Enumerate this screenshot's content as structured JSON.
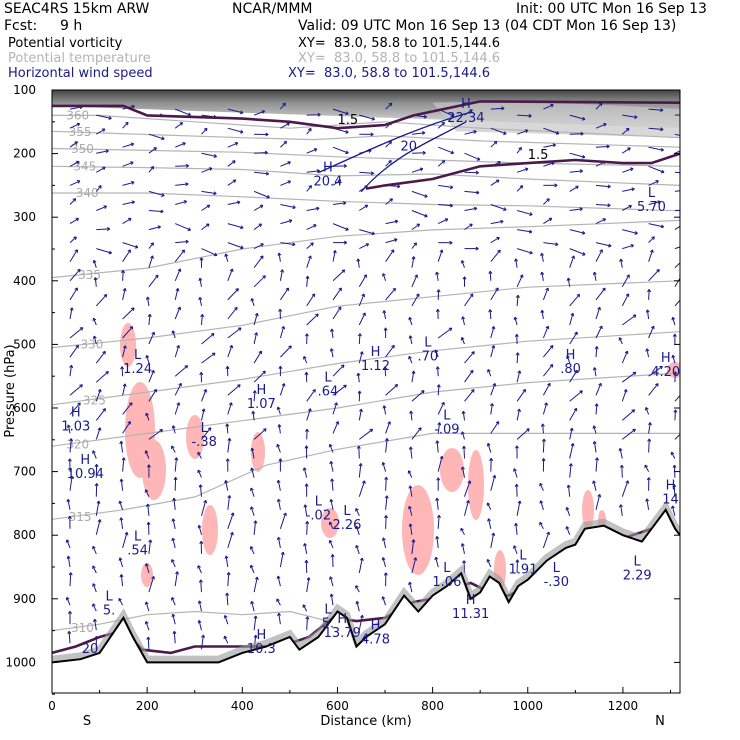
{
  "header": {
    "model": "SEAC4RS 15km ARW",
    "org": "NCAR/MMM",
    "init": "Init: 00 UTC Mon 16 Sep 13",
    "fcst_label": "Fcst:",
    "fcst_value": "9 h",
    "valid": "Valid: 09 UTC Mon 16 Sep 13 (04 CDT Mon 16 Sep 13)"
  },
  "legend": [
    {
      "name": "Potential vorticity",
      "xy": "XY=  83.0, 58.8 to 101.5,144.6",
      "color": "#000000"
    },
    {
      "name": "Potential temperature",
      "xy": "XY=  83.0, 58.8 to 101.5,144.6",
      "color": "#b4b4b4"
    },
    {
      "name": "Horizontal wind speed",
      "xy": "XY=  83.0, 58.8 to 101.5,144.6",
      "color": "#1a1a8c"
    }
  ],
  "chart_data": {
    "type": "cross-section",
    "xlabel": "Distance (km)",
    "ylabel": "Pressure (hPa)",
    "x_ticks": [
      "0",
      "200",
      "400",
      "600",
      "800",
      "1000",
      "1200"
    ],
    "y_ticks": [
      "100",
      "200",
      "300",
      "400",
      "500",
      "600",
      "700",
      "800",
      "900",
      "1000"
    ],
    "xlim": [
      0,
      1320
    ],
    "ylim": [
      1050,
      100
    ],
    "end_labels": {
      "left": "S",
      "right": "N"
    },
    "terrain": [
      [
        0,
        1000
      ],
      [
        60,
        995
      ],
      [
        100,
        985
      ],
      [
        150,
        930
      ],
      [
        170,
        960
      ],
      [
        200,
        1000
      ],
      [
        250,
        1000
      ],
      [
        300,
        1000
      ],
      [
        350,
        1000
      ],
      [
        400,
        985
      ],
      [
        450,
        975
      ],
      [
        500,
        960
      ],
      [
        520,
        980
      ],
      [
        560,
        960
      ],
      [
        600,
        920
      ],
      [
        620,
        930
      ],
      [
        640,
        975
      ],
      [
        660,
        960
      ],
      [
        700,
        940
      ],
      [
        740,
        895
      ],
      [
        770,
        920
      ],
      [
        800,
        895
      ],
      [
        830,
        880
      ],
      [
        860,
        860
      ],
      [
        880,
        900
      ],
      [
        900,
        890
      ],
      [
        920,
        865
      ],
      [
        940,
        875
      ],
      [
        960,
        905
      ],
      [
        980,
        880
      ],
      [
        1000,
        870
      ],
      [
        1040,
        840
      ],
      [
        1080,
        820
      ],
      [
        1100,
        815
      ],
      [
        1120,
        790
      ],
      [
        1160,
        785
      ],
      [
        1200,
        800
      ],
      [
        1240,
        810
      ],
      [
        1260,
        790
      ],
      [
        1290,
        760
      ],
      [
        1310,
        790
      ],
      [
        1320,
        800
      ]
    ],
    "theta_isentropes": [
      {
        "label": "360",
        "points": [
          [
            0,
            140
          ],
          [
            100,
            140
          ],
          [
            300,
            150
          ],
          [
            500,
            160
          ],
          [
            700,
            150
          ],
          [
            900,
            160
          ],
          [
            1320,
            175
          ]
        ]
      },
      {
        "label": "355",
        "points": [
          [
            0,
            165
          ],
          [
            200,
            170
          ],
          [
            400,
            175
          ],
          [
            550,
            178
          ],
          [
            700,
            172
          ],
          [
            900,
            180
          ],
          [
            1320,
            190
          ]
        ]
      },
      {
        "label": "350",
        "points": [
          [
            0,
            192
          ],
          [
            200,
            195
          ],
          [
            400,
            198
          ],
          [
            600,
            205
          ],
          [
            800,
            210
          ],
          [
            1000,
            215
          ],
          [
            1320,
            220
          ]
        ]
      },
      {
        "label": "345",
        "points": [
          [
            0,
            220
          ],
          [
            200,
            222
          ],
          [
            400,
            225
          ],
          [
            600,
            235
          ],
          [
            800,
            232
          ],
          [
            1000,
            240
          ],
          [
            1320,
            250
          ]
        ]
      },
      {
        "label": "340",
        "points": [
          [
            0,
            262
          ],
          [
            200,
            262
          ],
          [
            400,
            268
          ],
          [
            600,
            275
          ],
          [
            800,
            280
          ],
          [
            1000,
            282
          ],
          [
            1320,
            290
          ]
        ]
      },
      {
        "label": "335",
        "points": [
          [
            0,
            395
          ],
          [
            200,
            380
          ],
          [
            400,
            350
          ],
          [
            600,
            330
          ],
          [
            800,
            320
          ],
          [
            1000,
            315
          ],
          [
            1320,
            305
          ]
        ]
      },
      {
        "label": "330",
        "points": [
          [
            0,
            505
          ],
          [
            200,
            490
          ],
          [
            400,
            470
          ],
          [
            600,
            440
          ],
          [
            800,
            425
          ],
          [
            1000,
            410
          ],
          [
            1320,
            400
          ]
        ]
      },
      {
        "label": "325",
        "points": [
          [
            0,
            595
          ],
          [
            200,
            575
          ],
          [
            400,
            555
          ],
          [
            600,
            530
          ],
          [
            800,
            510
          ],
          [
            1000,
            495
          ],
          [
            1320,
            480
          ]
        ]
      },
      {
        "label": "320",
        "points": [
          [
            0,
            660
          ],
          [
            200,
            640
          ],
          [
            400,
            620
          ],
          [
            600,
            600
          ],
          [
            800,
            575
          ],
          [
            1000,
            560
          ],
          [
            1320,
            545
          ]
        ]
      },
      {
        "label": "315",
        "points": [
          [
            0,
            775
          ],
          [
            150,
            760
          ],
          [
            300,
            740
          ],
          [
            450,
            690
          ],
          [
            600,
            665
          ],
          [
            800,
            640
          ],
          [
            1000,
            640
          ],
          [
            1320,
            640
          ]
        ]
      },
      {
        "label": "310",
        "points": [
          [
            0,
            950
          ],
          [
            100,
            940
          ],
          [
            200,
            925
          ],
          [
            300,
            920
          ],
          [
            400,
            925
          ],
          [
            500,
            920
          ],
          [
            580,
            935
          ]
        ]
      }
    ],
    "pv_1_5_contours": [
      {
        "label": "1.5",
        "points": [
          [
            0,
            125
          ],
          [
            150,
            125
          ],
          [
            200,
            140
          ],
          [
            400,
            145
          ],
          [
            500,
            150
          ],
          [
            600,
            160
          ],
          [
            700,
            155
          ],
          [
            760,
            140
          ],
          [
            900,
            118
          ],
          [
            1320,
            120
          ]
        ]
      },
      {
        "label": "1.5",
        "points": [
          [
            660,
            255
          ],
          [
            700,
            250
          ],
          [
            800,
            240
          ],
          [
            900,
            220
          ],
          [
            1000,
            215
          ],
          [
            1100,
            210
          ],
          [
            1200,
            215
          ],
          [
            1260,
            215
          ],
          [
            1320,
            200
          ]
        ]
      },
      {
        "label": "",
        "points": [
          [
            0,
            985
          ],
          [
            50,
            975
          ],
          [
            100,
            960
          ],
          [
            150,
            950
          ],
          [
            190,
            980
          ],
          [
            250,
            985
          ],
          [
            300,
            975
          ],
          [
            400,
            975
          ],
          [
            450,
            975
          ],
          [
            500,
            970
          ],
          [
            540,
            960
          ],
          [
            590,
            930
          ],
          [
            640,
            935
          ],
          [
            700,
            930
          ],
          [
            760,
            905
          ],
          [
            800,
            900
          ],
          [
            840,
            885
          ],
          [
            880,
            875
          ],
          [
            920,
            890
          ],
          [
            960,
            895
          ],
          [
            1000,
            880
          ],
          [
            1040,
            850
          ],
          [
            1100,
            820
          ],
          [
            1200,
            805
          ],
          [
            1260,
            790
          ],
          [
            1320,
            800
          ]
        ]
      }
    ],
    "wind_max_labels": [
      {
        "kind": "H",
        "value": "22.34",
        "x": 870,
        "p": 150
      },
      {
        "kind": "H",
        "value": "20.4",
        "x": 580,
        "p": 250
      },
      {
        "kind": "L",
        "value": "5.70",
        "x": 1260,
        "p": 290
      },
      {
        "kind": "L",
        "value": "1.24",
        "x": 180,
        "p": 545
      },
      {
        "kind": "H",
        "value": "1.12",
        "x": 680,
        "p": 540
      },
      {
        "kind": "L",
        "value": ".70",
        "x": 790,
        "p": 525
      },
      {
        "kind": "L",
        "value": ".64",
        "x": 580,
        "p": 580
      },
      {
        "kind": "H",
        "value": "1.07",
        "x": 440,
        "p": 600
      },
      {
        "kind": "H",
        "value": ".80",
        "x": 1090,
        "p": 545
      },
      {
        "kind": "H",
        "value": "4.20",
        "x": 1290,
        "p": 550
      },
      {
        "kind": "H",
        "value": "1.03",
        "x": 50,
        "p": 635
      },
      {
        "kind": "L",
        "value": "-.38",
        "x": 320,
        "p": 660
      },
      {
        "kind": "L",
        "value": "-.09",
        "x": 830,
        "p": 640
      },
      {
        "kind": "H",
        "value": "10.94",
        "x": 70,
        "p": 710
      },
      {
        "kind": "H",
        "value": "14",
        "x": 1300,
        "p": 750
      },
      {
        "kind": "L",
        "value": "-.02",
        "x": 560,
        "p": 775
      },
      {
        "kind": "L",
        "value": "2.26",
        "x": 620,
        "p": 790
      },
      {
        "kind": "L",
        "value": ".54",
        "x": 180,
        "p": 830
      },
      {
        "kind": "L",
        "value": "1.06",
        "x": 830,
        "p": 880
      },
      {
        "kind": "L",
        "value": "1.91",
        "x": 990,
        "p": 860
      },
      {
        "kind": "L",
        "value": "-.30",
        "x": 1060,
        "p": 880
      },
      {
        "kind": "L",
        "value": "2.29",
        "x": 1230,
        "p": 870
      },
      {
        "kind": "H",
        "value": "11.31",
        "x": 880,
        "p": 930
      },
      {
        "kind": "L",
        "value": "5.",
        "x": 120,
        "p": 925
      },
      {
        "kind": "L",
        "value": "5.",
        "x": 580,
        "p": 945
      },
      {
        "kind": "H",
        "value": "13.79",
        "x": 610,
        "p": 960
      },
      {
        "kind": "H",
        "value": "4.78",
        "x": 680,
        "p": 970
      },
      {
        "kind": "H",
        "value": "10.3",
        "x": 440,
        "p": 985
      },
      {
        "kind": "",
        "value": "20",
        "x": 80,
        "p": 985
      }
    ],
    "wind_contour_labels": [
      {
        "value": "20",
        "x": 750,
        "p": 195
      }
    ],
    "shading_note": "pink = negative potential vorticity regions; grey = high PV stratosphere and boundary layer"
  }
}
